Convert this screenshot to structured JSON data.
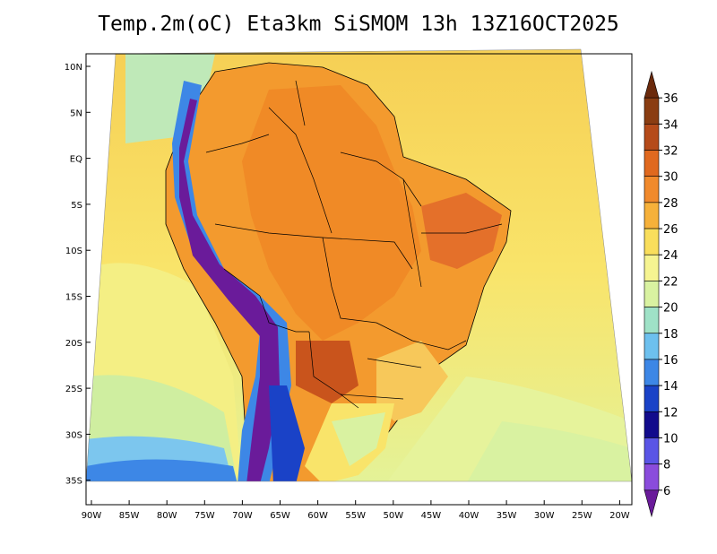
{
  "title": "Temp.2m(oC) Eta3km SiSMOM 13h 13Z16OCT2025",
  "lat_labels": [
    "10N",
    "5N",
    "EQ",
    "5S",
    "10S",
    "15S",
    "20S",
    "25S",
    "30S",
    "35S"
  ],
  "lon_labels": [
    "90W",
    "85W",
    "80W",
    "75W",
    "70W",
    "65W",
    "60W",
    "55W",
    "50W",
    "45W",
    "40W",
    "35W",
    "30W",
    "25W",
    "20W"
  ],
  "colorbar": {
    "labels": [
      "36",
      "34",
      "32",
      "30",
      "28",
      "26",
      "24",
      "22",
      "20",
      "18",
      "16",
      "14",
      "12",
      "10",
      "8",
      "6"
    ],
    "colors": [
      "#6b2a0c",
      "#8a3d12",
      "#b54b1a",
      "#e0691f",
      "#f18a2c",
      "#f6b13a",
      "#f9de5c",
      "#f6f491",
      "#d9f2a1",
      "#9fe2c7",
      "#6dc0ee",
      "#3d87e6",
      "#1a42c7",
      "#120b8c",
      "#5a55e6",
      "#8a4cdc",
      "#6a1b9a"
    ]
  }
}
